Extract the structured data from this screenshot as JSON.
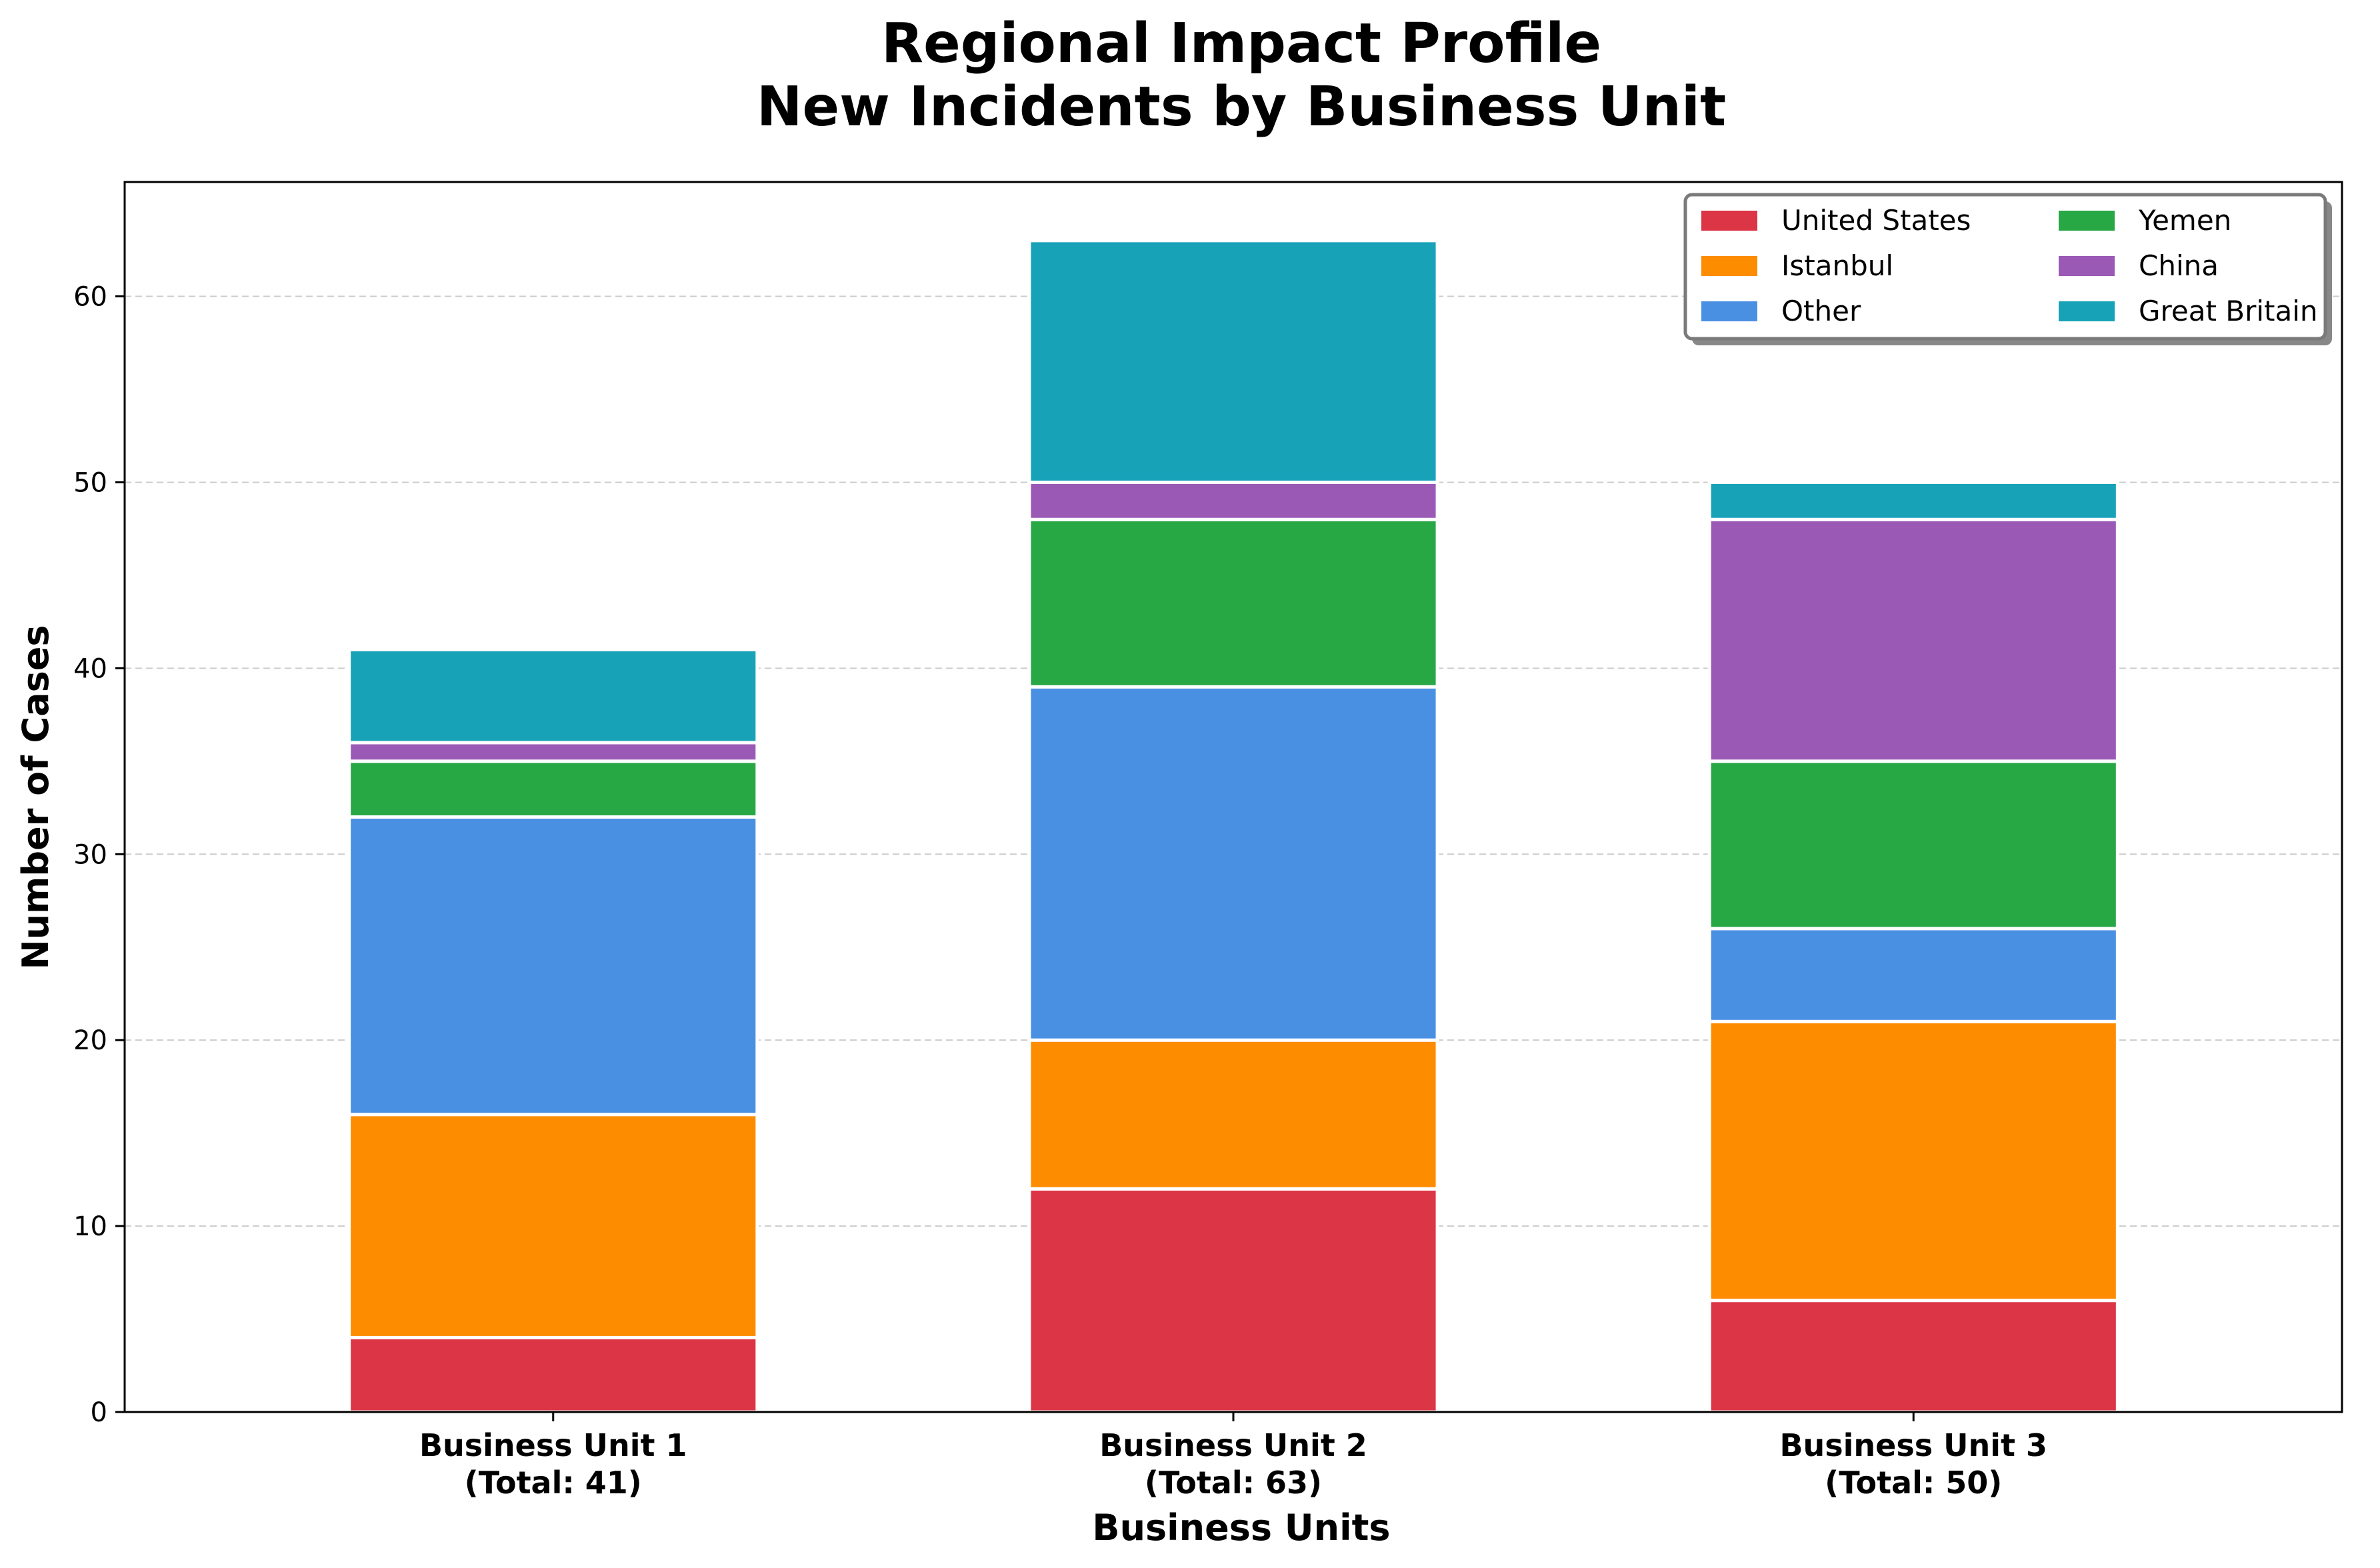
{
  "chart_data": {
    "type": "bar",
    "stacked": true,
    "title_line1": "Regional Impact Profile",
    "title_line2": "New Incidents by Business Unit",
    "xlabel": "Business Units",
    "ylabel": "Number of Cases",
    "ylim": [
      0,
      66.15
    ],
    "yticks": [
      0,
      10,
      20,
      30,
      40,
      50,
      60
    ],
    "grid": "y-dashed",
    "legend_position": "top-right",
    "categories": [
      {
        "line1": "Business Unit 1",
        "line2": "(Total: 41)"
      },
      {
        "line1": "Business Unit 2",
        "line2": "(Total: 63)"
      },
      {
        "line1": "Business Unit 3",
        "line2": "(Total: 50)"
      }
    ],
    "series": [
      {
        "name": "United States",
        "color": "#dc3545",
        "values": [
          4,
          12,
          6
        ]
      },
      {
        "name": "Istanbul",
        "color": "#fd8c00",
        "values": [
          12,
          8,
          15
        ]
      },
      {
        "name": "Other",
        "color": "#4a90e2",
        "values": [
          16,
          19,
          5
        ]
      },
      {
        "name": "Yemen",
        "color": "#28a745",
        "values": [
          3,
          9,
          9
        ]
      },
      {
        "name": "China",
        "color": "#9b59b6",
        "values": [
          1,
          2,
          13
        ]
      },
      {
        "name": "Great Britain",
        "color": "#17a2b8",
        "values": [
          5,
          13,
          2
        ]
      }
    ]
  }
}
